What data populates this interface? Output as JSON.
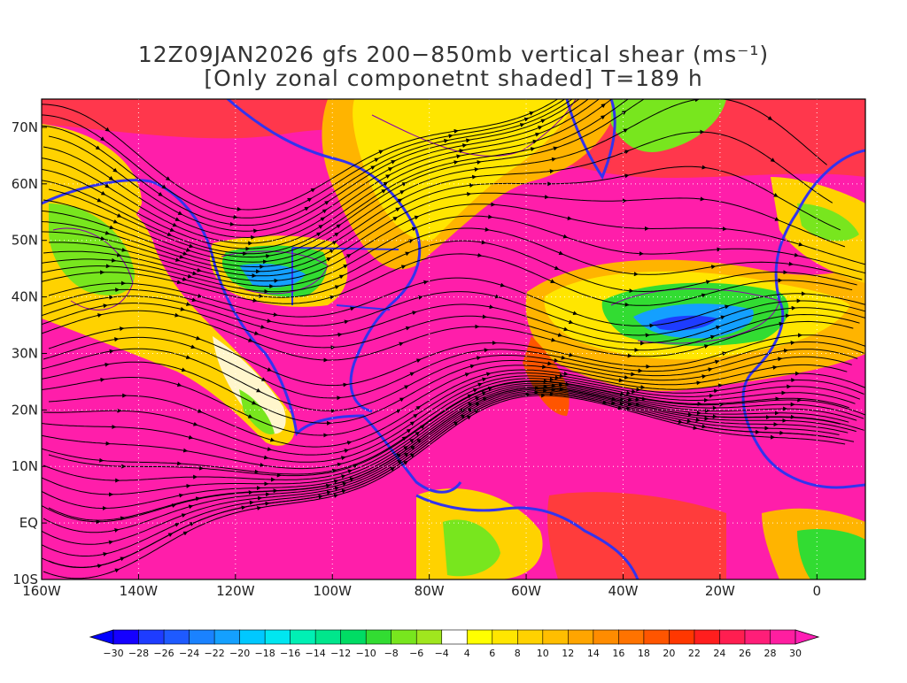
{
  "title": {
    "line1": "12Z09JAN2026 gfs 200−850mb vertical shear (ms⁻¹)",
    "line2": "[Only zonal componetnt shaded] T=189 h"
  },
  "map": {
    "lat_labels": [
      "70N",
      "60N",
      "50N",
      "40N",
      "30N",
      "20N",
      "10N",
      "EQ",
      "10S"
    ],
    "lon_labels": [
      "160W",
      "140W",
      "120W",
      "100W",
      "80W",
      "60W",
      "40W",
      "20W",
      "0"
    ],
    "coastline_color": "#3333ee",
    "streamline_color": "#000000",
    "contour_color": "#8800aa"
  },
  "colorbar": {
    "labels": [
      "−30",
      "−28",
      "−26",
      "−24",
      "−22",
      "−20",
      "−18",
      "−16",
      "−14",
      "−12",
      "−10",
      "−8",
      "−6",
      "−4",
      "4",
      "6",
      "8",
      "10",
      "12",
      "14",
      "16",
      "18",
      "20",
      "22",
      "24",
      "26",
      "28",
      "30"
    ],
    "colors": [
      "#1500ff",
      "#1e3cff",
      "#1e5aff",
      "#1a82ff",
      "#14a0ff",
      "#00c8ff",
      "#00e6f0",
      "#00f0b4",
      "#00e68c",
      "#00dc64",
      "#32dc32",
      "#78e61e",
      "#a0e61e",
      "#ffffff",
      "#ffff00",
      "#ffe600",
      "#ffd200",
      "#ffbe00",
      "#ffa500",
      "#ff8c00",
      "#ff7300",
      "#ff5500",
      "#ff3700",
      "#ff1e1e",
      "#ff1e50",
      "#ff1e78",
      "#ff1ea0"
    ],
    "under_color": "#0000ff",
    "over_color": "#ff1eb4"
  }
}
